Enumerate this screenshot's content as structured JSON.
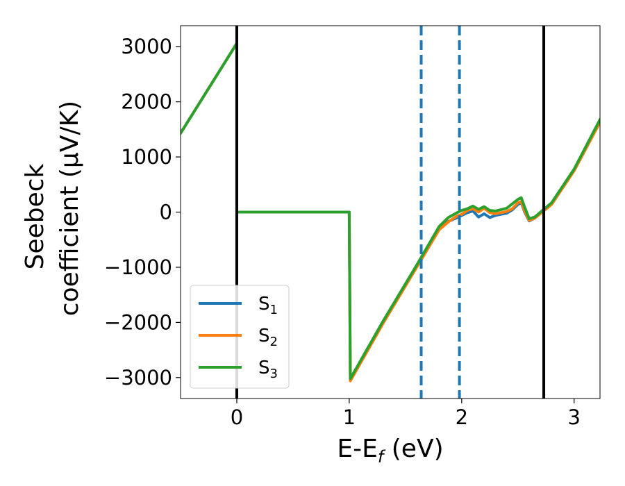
{
  "chart_data": {
    "type": "line",
    "title": "",
    "xlabel": "E-E_f (eV)",
    "xlabel_parts": {
      "main": "E-E",
      "sub": "f",
      "tail": " (eV)"
    },
    "ylabel_line1": "Seebeck",
    "ylabel_line2": "coefficient  (μV/K)",
    "xlim": [
      -0.5,
      3.23
    ],
    "ylim": [
      -3380,
      3380
    ],
    "x_ticks": [
      0,
      1,
      2,
      3
    ],
    "x_tick_labels": [
      "0",
      "1",
      "2",
      "3"
    ],
    "y_ticks": [
      -3000,
      -2000,
      -1000,
      0,
      1000,
      2000,
      3000
    ],
    "y_tick_labels": [
      "−3000",
      "−2000",
      "−1000",
      "0",
      "1000",
      "2000",
      "3000"
    ],
    "legend": {
      "position": "lower-left"
    },
    "vlines": [
      {
        "x": 0.0,
        "style": "solid",
        "color": "#000000"
      },
      {
        "x": 2.73,
        "style": "solid",
        "color": "#000000"
      },
      {
        "x": 1.64,
        "style": "dashed",
        "color": "#1f77b4"
      },
      {
        "x": 1.98,
        "style": "dashed",
        "color": "#1f77b4"
      }
    ],
    "series": [
      {
        "name": "S_1",
        "label_main": "S",
        "label_sub": "1",
        "color": "#1f77b4",
        "x": [
          -0.5,
          0.0,
          0.0,
          1.0,
          1.01,
          1.3,
          1.6,
          1.8,
          1.88,
          1.95,
          2.0,
          2.05,
          2.1,
          2.15,
          2.2,
          2.25,
          2.3,
          2.4,
          2.45,
          2.5,
          2.53,
          2.56,
          2.6,
          2.65,
          2.73,
          2.8,
          3.0,
          3.23
        ],
        "y": [
          1430,
          3060,
          0,
          0,
          -3040,
          -2000,
          -980,
          -300,
          -170,
          -110,
          -60,
          -10,
          20,
          -90,
          -30,
          -100,
          -60,
          -20,
          40,
          140,
          170,
          0,
          -160,
          -110,
          30,
          150,
          770,
          1650
        ]
      },
      {
        "name": "S_2",
        "label_main": "S",
        "label_sub": "2",
        "color": "#ff7f0e",
        "x": [
          -0.5,
          0.0,
          0.0,
          1.0,
          1.01,
          1.3,
          1.6,
          1.8,
          1.88,
          1.95,
          2.0,
          2.05,
          2.1,
          2.15,
          2.2,
          2.25,
          2.3,
          2.4,
          2.45,
          2.5,
          2.53,
          2.56,
          2.6,
          2.65,
          2.73,
          2.8,
          3.0,
          3.23
        ],
        "y": [
          1430,
          3060,
          0,
          0,
          -3060,
          -2020,
          -1000,
          -320,
          -180,
          -80,
          -40,
          30,
          60,
          0,
          70,
          -10,
          -30,
          10,
          60,
          170,
          190,
          20,
          -150,
          -110,
          20,
          140,
          750,
          1630
        ]
      },
      {
        "name": "S_3",
        "label_main": "S",
        "label_sub": "3",
        "color": "#2ca02c",
        "x": [
          -0.5,
          0.0,
          0.0,
          1.0,
          1.01,
          1.3,
          1.6,
          1.8,
          1.88,
          1.95,
          2.0,
          2.05,
          2.1,
          2.15,
          2.2,
          2.25,
          2.3,
          2.4,
          2.45,
          2.5,
          2.53,
          2.56,
          2.6,
          2.65,
          2.73,
          2.8,
          3.0,
          3.23
        ],
        "y": [
          1430,
          3060,
          0,
          0,
          -3020,
          -1980,
          -960,
          -260,
          -100,
          -20,
          30,
          60,
          110,
          50,
          100,
          30,
          20,
          70,
          150,
          230,
          260,
          90,
          -120,
          -90,
          50,
          170,
          780,
          1680
        ]
      }
    ]
  }
}
